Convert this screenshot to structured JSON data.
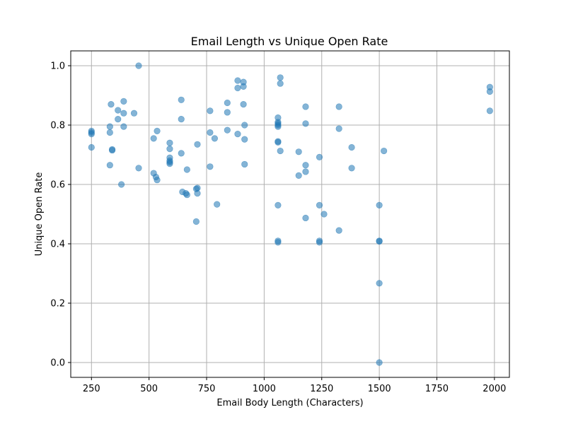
{
  "chart_data": {
    "type": "scatter",
    "title": "Email Length vs Unique Open Rate",
    "xlabel": "Email Body Length (Characters)",
    "ylabel": "Unique Open Rate",
    "xlim": [
      160,
      2065
    ],
    "ylim": [
      -0.05,
      1.05
    ],
    "xticks": [
      250,
      500,
      750,
      1000,
      1250,
      1500,
      1750,
      2000
    ],
    "yticks": [
      0.0,
      0.2,
      0.4,
      0.6,
      0.8,
      1.0
    ],
    "grid": true,
    "legend": "none",
    "color": "#1f77b4",
    "points": [
      [
        250,
        0.78
      ],
      [
        250,
        0.775
      ],
      [
        250,
        0.77
      ],
      [
        250,
        0.725
      ],
      [
        330,
        0.665
      ],
      [
        330,
        0.775
      ],
      [
        330,
        0.795
      ],
      [
        335,
        0.87
      ],
      [
        340,
        0.715
      ],
      [
        340,
        0.718
      ],
      [
        365,
        0.85
      ],
      [
        365,
        0.82
      ],
      [
        380,
        0.6
      ],
      [
        390,
        0.88
      ],
      [
        390,
        0.84
      ],
      [
        390,
        0.795
      ],
      [
        435,
        0.84
      ],
      [
        455,
        1.0
      ],
      [
        455,
        0.655
      ],
      [
        520,
        0.755
      ],
      [
        520,
        0.638
      ],
      [
        530,
        0.625
      ],
      [
        535,
        0.615
      ],
      [
        535,
        0.78
      ],
      [
        590,
        0.74
      ],
      [
        590,
        0.72
      ],
      [
        590,
        0.69
      ],
      [
        590,
        0.68
      ],
      [
        590,
        0.675
      ],
      [
        590,
        0.67
      ],
      [
        640,
        0.885
      ],
      [
        640,
        0.82
      ],
      [
        640,
        0.705
      ],
      [
        645,
        0.575
      ],
      [
        660,
        0.57
      ],
      [
        665,
        0.565
      ],
      [
        665,
        0.65
      ],
      [
        705,
        0.475
      ],
      [
        705,
        0.585
      ],
      [
        710,
        0.588
      ],
      [
        710,
        0.735
      ],
      [
        710,
        0.57
      ],
      [
        765,
        0.848
      ],
      [
        765,
        0.775
      ],
      [
        765,
        0.66
      ],
      [
        785,
        0.755
      ],
      [
        795,
        0.533
      ],
      [
        840,
        0.875
      ],
      [
        840,
        0.843
      ],
      [
        840,
        0.783
      ],
      [
        885,
        0.95
      ],
      [
        885,
        0.925
      ],
      [
        885,
        0.77
      ],
      [
        910,
        0.945
      ],
      [
        910,
        0.93
      ],
      [
        910,
        0.87
      ],
      [
        915,
        0.8
      ],
      [
        915,
        0.752
      ],
      [
        915,
        0.668
      ],
      [
        1060,
        0.825
      ],
      [
        1060,
        0.81
      ],
      [
        1060,
        0.805
      ],
      [
        1060,
        0.8
      ],
      [
        1060,
        0.795
      ],
      [
        1060,
        0.745
      ],
      [
        1060,
        0.742
      ],
      [
        1060,
        0.53
      ],
      [
        1060,
        0.41
      ],
      [
        1060,
        0.405
      ],
      [
        1070,
        0.96
      ],
      [
        1070,
        0.94
      ],
      [
        1070,
        0.713
      ],
      [
        1150,
        0.71
      ],
      [
        1150,
        0.63
      ],
      [
        1180,
        0.862
      ],
      [
        1180,
        0.805
      ],
      [
        1180,
        0.665
      ],
      [
        1180,
        0.643
      ],
      [
        1180,
        0.487
      ],
      [
        1240,
        0.692
      ],
      [
        1240,
        0.53
      ],
      [
        1240,
        0.41
      ],
      [
        1240,
        0.405
      ],
      [
        1260,
        0.5
      ],
      [
        1325,
        0.862
      ],
      [
        1325,
        0.788
      ],
      [
        1325,
        0.445
      ],
      [
        1380,
        0.725
      ],
      [
        1380,
        0.655
      ],
      [
        1500,
        0.53
      ],
      [
        1500,
        0.41
      ],
      [
        1500,
        0.408
      ],
      [
        1500,
        0.267
      ],
      [
        1500,
        0.0
      ],
      [
        1520,
        0.713
      ],
      [
        1980,
        0.928
      ],
      [
        1980,
        0.913
      ],
      [
        1980,
        0.848
      ]
    ]
  }
}
